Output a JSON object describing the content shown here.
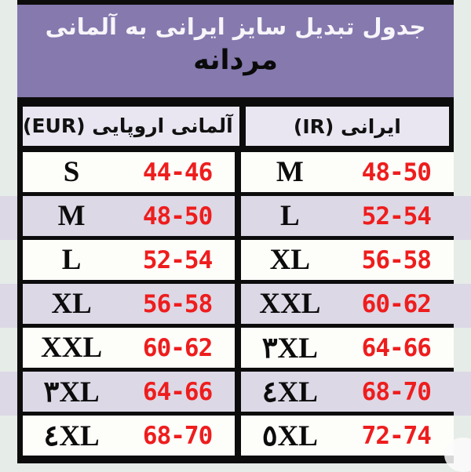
{
  "header": {
    "title": "جدول تبدیل سایز ایرانی به آلمانی",
    "subtitle": "مردانه"
  },
  "table": {
    "columns": [
      {
        "id": "eur",
        "label": "آلمانی اروپایی (EUR)"
      },
      {
        "id": "ir",
        "label": "ایرانی (IR)"
      }
    ],
    "rows": [
      {
        "eur_size": "S",
        "eur_range": "44-46",
        "ir_size": "M",
        "ir_range": "48-50"
      },
      {
        "eur_size": "M",
        "eur_range": "48-50",
        "ir_size": "L",
        "ir_range": "52-54"
      },
      {
        "eur_size": "L",
        "eur_range": "52-54",
        "ir_size": "XL",
        "ir_range": "56-58"
      },
      {
        "eur_size": "XL",
        "eur_range": "56-58",
        "ir_size": "XXL",
        "ir_range": "60-62"
      },
      {
        "eur_size": "XXL",
        "eur_range": "60-62",
        "ir_size": "۳XL",
        "ir_range": "64-66"
      },
      {
        "eur_size": "۳XL",
        "eur_range": "64-66",
        "ir_size": "٤XL",
        "ir_range": "68-70"
      },
      {
        "eur_size": "٤XL",
        "eur_range": "68-70",
        "ir_size": "٥XL",
        "ir_range": "72-74"
      }
    ]
  },
  "colors": {
    "banner_purple": "#8579ae",
    "stripe_lavender": "#dcd8e6",
    "range_red": "#ee1d1d",
    "border_black": "#0d0c0c",
    "page_background": "#e6ece7"
  }
}
